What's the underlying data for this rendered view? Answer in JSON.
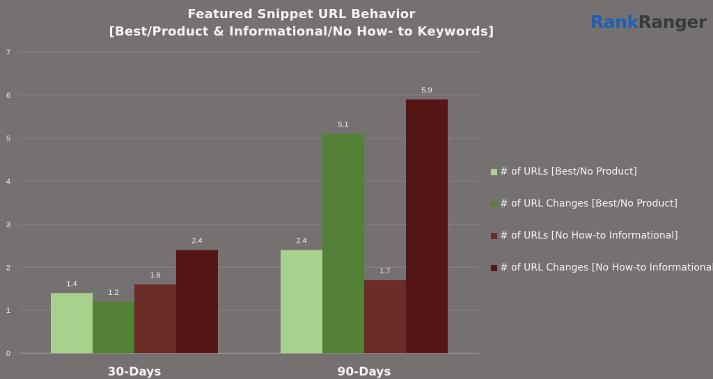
{
  "chart_data": {
    "type": "bar",
    "title_lines": [
      "Featured Snippet URL Behavior",
      "[Best/Product & Informational/No How- to Keywords]"
    ],
    "categories": [
      "30-Days",
      "90-Days"
    ],
    "series": [
      {
        "name": "# of URLs [Best/No Product]",
        "color": "#a9d18e",
        "values": [
          1.4,
          2.4
        ]
      },
      {
        "name": "# of URL Changes [Best/No Product]",
        "color": "#538135",
        "values": [
          1.2,
          5.1
        ]
      },
      {
        "name": "# of URLs [No How-to Informational]",
        "color": "#6b2c28",
        "values": [
          1.6,
          1.7
        ]
      },
      {
        "name": "# of URL Changes [No How-to Informational]",
        "color": "#561616",
        "values": [
          2.4,
          5.9
        ]
      }
    ],
    "ylim": [
      0,
      7
    ],
    "yticks": [
      "0",
      "1",
      "2",
      "3",
      "4",
      "5",
      "6",
      "7"
    ],
    "grid": true,
    "legend_position": "right"
  },
  "brand": {
    "logo_part1": "Rank",
    "logo_part2": "Ranger",
    "logo_color1": "#1f5fb4",
    "logo_color2": "#3a3a3a"
  }
}
